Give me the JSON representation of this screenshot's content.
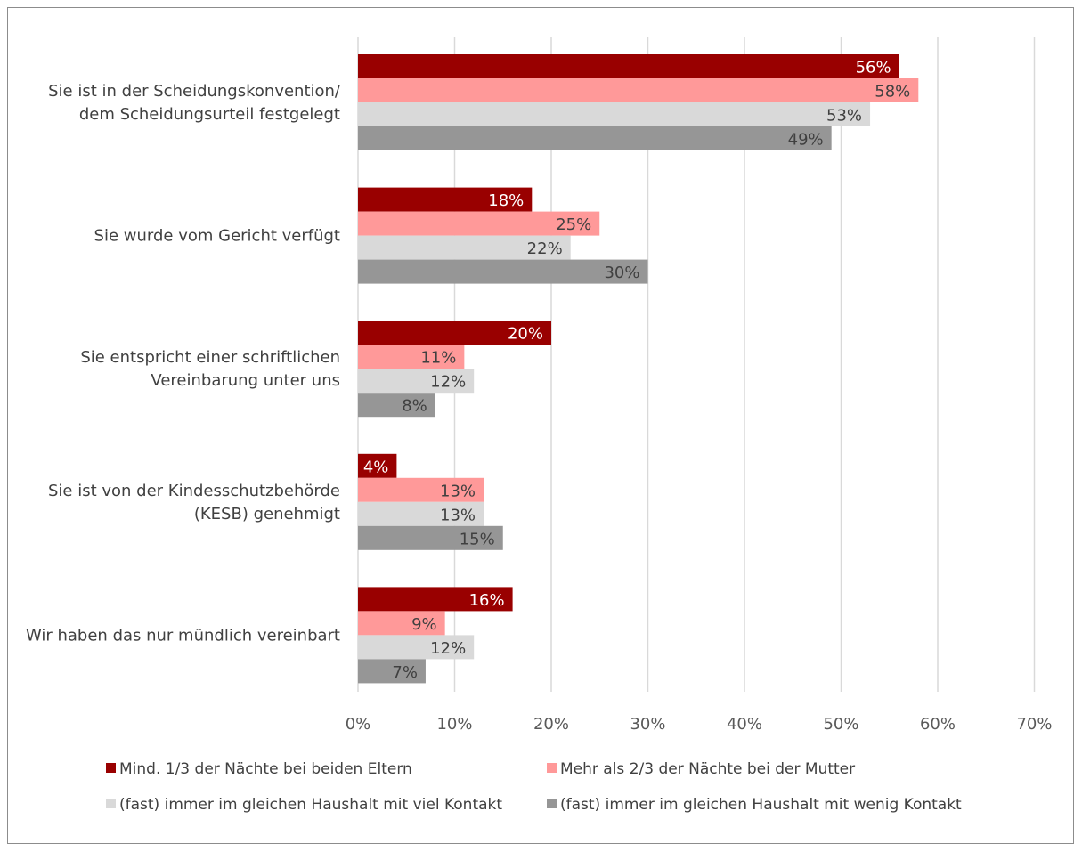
{
  "chart_data": {
    "type": "bar",
    "orientation": "horizontal",
    "title": "",
    "xlabel": "",
    "ylabel": "",
    "xlim": [
      0,
      70
    ],
    "ticks": [
      "0%",
      "10%",
      "20%",
      "30%",
      "40%",
      "50%",
      "60%",
      "70%"
    ],
    "grid": true,
    "legend_position": "bottom",
    "categories": [
      [
        "Sie ist in der Scheidungskonvention/",
        "dem Scheidungsurteil festgelegt"
      ],
      [
        "Sie wurde vom Gericht verfügt"
      ],
      [
        "Sie entspricht einer schriftlichen",
        "Vereinbarung unter uns"
      ],
      [
        "Sie ist von der Kindesschutzbehörde",
        "(KESB) genehmigt"
      ],
      [
        "Wir haben das nur mündlich vereinbart"
      ]
    ],
    "series": [
      {
        "name": "Mind. 1/3 der Nächte bei beiden Eltern",
        "color": "#990000",
        "label_color": "#ffffff",
        "values": [
          56,
          18,
          20,
          4,
          16
        ],
        "labels": [
          "56%",
          "18%",
          "20%",
          "4%",
          "16%"
        ]
      },
      {
        "name": "Mehr als 2/3 der Nächte bei der Mutter",
        "color": "#ff9999",
        "label_color": "#404040",
        "values": [
          58,
          25,
          11,
          13,
          9
        ],
        "labels": [
          "58%",
          "25%",
          "11%",
          "13%",
          "9%"
        ]
      },
      {
        "name": "(fast) immer im gleichen Haushalt mit viel Kontakt",
        "color": "#d9d9d9",
        "label_color": "#404040",
        "values": [
          53,
          22,
          12,
          13,
          12
        ],
        "labels": [
          "53%",
          "22%",
          "12%",
          "13%",
          "12%"
        ]
      },
      {
        "name": "(fast) immer im gleichen Haushalt mit wenig Kontakt",
        "color": "#969696",
        "label_color": "#404040",
        "values": [
          49,
          30,
          8,
          15,
          7
        ],
        "labels": [
          "49%",
          "30%",
          "8%",
          "15%",
          "7%"
        ]
      }
    ]
  }
}
